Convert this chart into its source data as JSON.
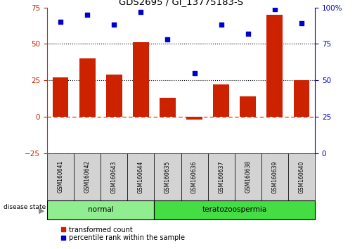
{
  "title": "GDS2695 / GI_13775183-S",
  "samples": [
    "GSM160641",
    "GSM160642",
    "GSM160643",
    "GSM160644",
    "GSM160635",
    "GSM160636",
    "GSM160637",
    "GSM160638",
    "GSM160639",
    "GSM160640"
  ],
  "transformed_count": [
    27,
    40,
    29,
    51,
    13,
    -2,
    22,
    14,
    70,
    25
  ],
  "percentile_rank": [
    90,
    95,
    88,
    97,
    78,
    55,
    88,
    82,
    99,
    89
  ],
  "groups": [
    {
      "label": "normal",
      "start": 0,
      "end": 4,
      "color": "#90EE90"
    },
    {
      "label": "teratozoospermia",
      "start": 4,
      "end": 10,
      "color": "#44DD44"
    }
  ],
  "ylim_left": [
    -25,
    75
  ],
  "ylim_right": [
    0,
    100
  ],
  "yticks_left": [
    -25,
    0,
    25,
    50,
    75
  ],
  "yticks_right": [
    0,
    25,
    50,
    75,
    100
  ],
  "ytick_labels_right": [
    "0",
    "25",
    "50",
    "75",
    "100%"
  ],
  "bar_color": "#CC2200",
  "dot_color": "#0000CC",
  "bar_width": 0.6,
  "disease_state_label": "disease state",
  "legend_bar_label": "transformed count",
  "legend_dot_label": "percentile rank within the sample",
  "sample_box_facecolor": "#D3D3D3",
  "normal_color": "#90EE90",
  "tera_color": "#44DD44"
}
